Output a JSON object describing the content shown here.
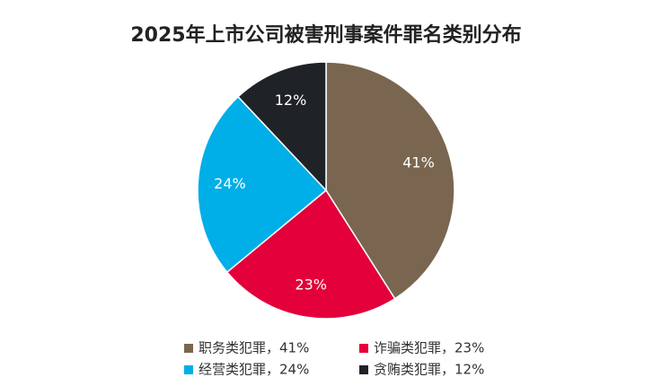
{
  "chart_data": {
    "type": "pie",
    "title": "2025年上市公司被害刑事案件罪名类别分布",
    "categories": [
      "职务类犯罪，41%",
      "诈骗类犯罪，23%",
      "经营类犯罪，24%",
      "贪贿类犯罪，12%"
    ],
    "values": [
      41,
      23,
      24,
      12
    ],
    "value_labels": [
      "41%",
      "23%",
      "24%",
      "12%"
    ],
    "colors": [
      "#7a6650",
      "#e4003a",
      "#00aee8",
      "#1f2226"
    ]
  }
}
